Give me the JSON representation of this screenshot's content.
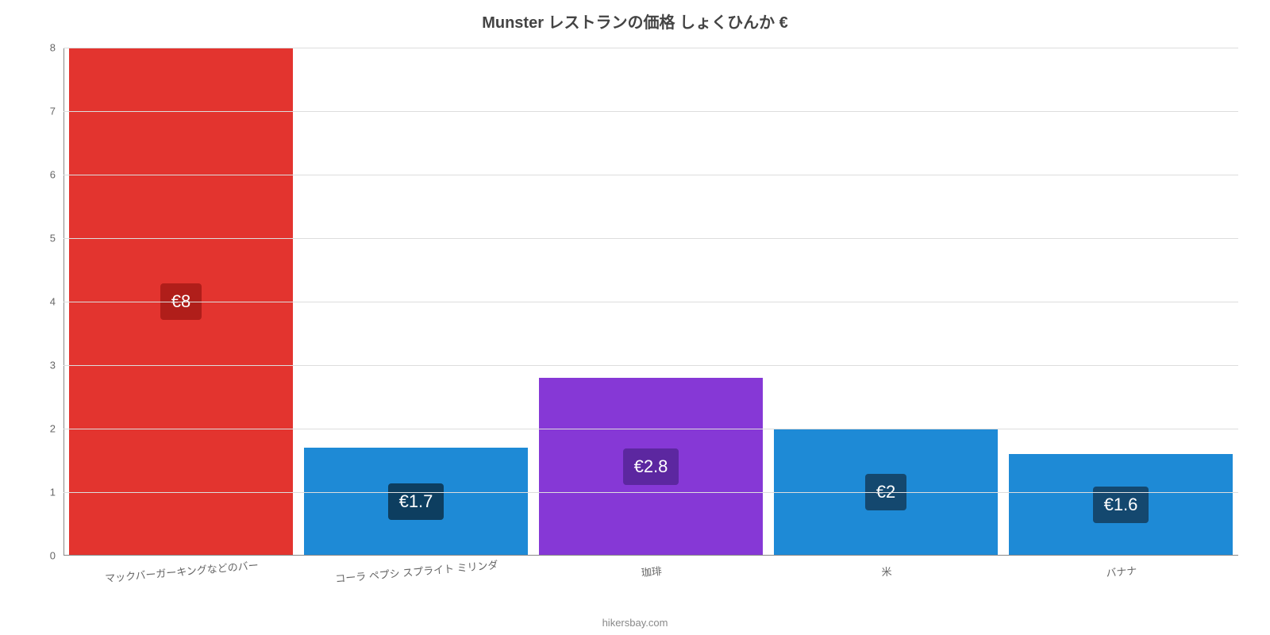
{
  "chart": {
    "type": "bar",
    "title": "Munster レストランの価格 しょくひんか €",
    "title_fontsize": 20,
    "title_color": "#444444",
    "background_color": "#ffffff",
    "grid_color": "#dddddd",
    "axis_color": "#888888",
    "label_color": "#666666",
    "ylim": [
      0,
      8
    ],
    "ytick_step": 1,
    "bar_width_pct": 95,
    "value_label_bg": "rgba(0,0,0,0.55)",
    "value_label_color": "#ffffff",
    "value_label_fontsize": 22,
    "x_label_fontsize": 13,
    "y_label_fontsize": 13,
    "x_label_rotate_deg": -5,
    "categories": [
      "マックバーガーキングなどのバー",
      "コーラ ペプシ スプライト ミリンダ",
      "珈琲",
      "米",
      "バナナ"
    ],
    "values": [
      8,
      1.7,
      2.8,
      2,
      1.6
    ],
    "value_labels": [
      "€8",
      "€1.7",
      "€2.8",
      "€2",
      "€1.6"
    ],
    "bar_colors": [
      "#e3342f",
      "#1e8ad6",
      "#8638d6",
      "#1e8ad6",
      "#1e8ad6"
    ],
    "value_label_bg_overrides": [
      "#b01e1a",
      null,
      "#5c27a0",
      "#14486f",
      "#14486f"
    ],
    "attribution": "hikersbay.com"
  }
}
